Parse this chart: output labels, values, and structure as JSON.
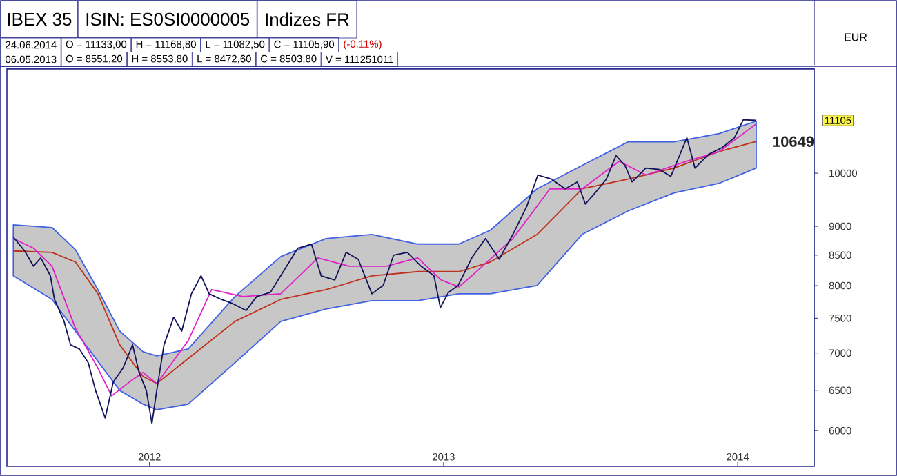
{
  "chart_data": {
    "type": "line",
    "title": "IBEX 35",
    "subtitle": "ISIN: ES0SI0000005",
    "ylabel": "EUR",
    "log": "y",
    "ylim": [
      5590,
      12300
    ],
    "yticks": [
      6000,
      6500,
      7000,
      7500,
      8000,
      8500,
      9000,
      10000
    ],
    "xlim": [
      "2011-12-07",
      "2014-09-04"
    ],
    "xticks": [
      {
        "value": "2012-06-01",
        "label": "2012"
      },
      {
        "value": "2013-06-01",
        "label": "2013"
      },
      {
        "value": "2014-06-01",
        "label": "2014"
      }
    ],
    "annotations": [
      "Indizes FR",
      "24.06.2014",
      "O = 11133,00",
      "H = 11168,80",
      "L = 11082,50",
      "C = 11105,90",
      "(-0.11%)",
      "06.05.2013",
      "O = 8551,20",
      "H = 8553,80",
      "L = 8472,60",
      "C = 8503,80",
      "V = 111251011",
      "11105"
    ],
    "series": [
      {
        "color": "#c0301c",
        "x": [
          "2011-12-15",
          "2012-02-01",
          "2012-03-01",
          "2012-03-29",
          "2012-04-25",
          "2012-05-24",
          "2012-06-10",
          "2012-07-19",
          "2012-09-15",
          "2012-11-11",
          "2013-01-06",
          "2013-03-04",
          "2013-04-30",
          "2013-06-20",
          "2013-07-29",
          "2013-09-25",
          "2013-11-20",
          "2014-01-16",
          "2014-03-14",
          "2014-05-09",
          "2014-06-24"
        ],
        "values": [
          8571,
          8547,
          8385,
          7873,
          7114,
          6680,
          6588,
          6922,
          7453,
          7787,
          7937,
          8158,
          8226,
          8226,
          8385,
          8857,
          9695,
          9883,
          10102,
          10439,
          10649
        ],
        "value_labels": [
          null,
          null,
          null,
          null,
          null,
          null,
          null,
          null,
          null,
          null,
          null,
          null,
          null,
          null,
          null,
          null,
          null,
          null,
          null,
          null,
          "10649"
        ],
        "upper": [
          9026,
          8979,
          8594,
          7937,
          7311,
          7017,
          6959,
          7056,
          7830,
          8477,
          8784,
          8857,
          8689,
          8689,
          8930,
          9695,
          10157,
          10642,
          10642,
          10818,
          11088
        ],
        "lower": [
          8158,
          7787,
          7311,
          6884,
          6499,
          6323,
          6254,
          6323,
          6865,
          7453,
          7639,
          7766,
          7766,
          7873,
          7873,
          8003,
          8857,
          9279,
          9616,
          9802,
          10102
        ]
      },
      {
        "color": "#e020c8",
        "x": [
          "2011-12-15",
          "2012-01-09",
          "2012-02-01",
          "2012-03-01",
          "2012-03-29",
          "2012-04-15",
          "2012-05-07",
          "2012-05-24",
          "2012-06-10",
          "2012-07-19",
          "2012-08-17",
          "2012-09-25",
          "2012-11-11",
          "2012-12-27",
          "2013-02-04",
          "2013-03-22",
          "2013-04-30",
          "2013-05-29",
          "2013-06-20",
          "2013-07-06",
          "2013-08-26",
          "2013-10-11",
          "2013-11-20",
          "2014-01-05",
          "2014-02-07",
          "2014-03-30",
          "2014-05-09",
          "2014-06-24"
        ],
        "values": [
          8784,
          8618,
          8316,
          7353,
          6791,
          6428,
          6607,
          6735,
          6588,
          7173,
          7937,
          7830,
          7873,
          8454,
          8316,
          8316,
          8454,
          8091,
          7981,
          8158,
          8784,
          9695,
          9695,
          10241,
          9964,
          10241,
          10439,
          11028
        ]
      },
      {
        "color": "#12125a",
        "x": [
          "2011-12-15",
          "2011-12-29",
          "2012-01-09",
          "2012-01-18",
          "2012-01-30",
          "2012-02-04",
          "2012-02-16",
          "2012-02-24",
          "2012-03-06",
          "2012-03-17",
          "2012-03-26",
          "2012-04-07",
          "2012-04-17",
          "2012-04-29",
          "2012-05-11",
          "2012-05-19",
          "2012-05-28",
          "2012-06-04",
          "2012-06-10",
          "2012-06-19",
          "2012-07-01",
          "2012-07-11",
          "2012-07-23",
          "2012-08-04",
          "2012-08-14",
          "2012-08-29",
          "2012-09-12",
          "2012-09-29",
          "2012-10-12",
          "2012-10-29",
          "2012-11-14",
          "2012-12-02",
          "2012-12-19",
          "2012-12-31",
          "2013-01-17",
          "2013-01-31",
          "2013-02-15",
          "2013-03-04",
          "2013-03-18",
          "2013-03-31",
          "2013-04-17",
          "2013-05-04",
          "2013-05-20",
          "2013-05-28",
          "2013-06-07",
          "2013-06-19",
          "2013-07-06",
          "2013-07-23",
          "2013-08-09",
          "2013-08-26",
          "2013-09-12",
          "2013-09-26",
          "2013-10-13",
          "2013-10-30",
          "2013-11-14",
          "2013-11-24",
          "2013-12-06",
          "2013-12-20",
          "2014-01-01",
          "2014-01-12",
          "2014-01-21",
          "2014-02-07",
          "2014-02-24",
          "2014-03-10",
          "2014-03-30",
          "2014-04-09",
          "2014-04-26",
          "2014-05-13",
          "2014-05-28",
          "2014-06-08",
          "2014-06-24"
        ],
        "values": [
          8809,
          8571,
          8316,
          8454,
          8158,
          7787,
          7453,
          7114,
          7056,
          6865,
          6499,
          6152,
          6607,
          6791,
          7114,
          6735,
          6499,
          6085,
          6499,
          7114,
          7514,
          7311,
          7873,
          8158,
          7873,
          7787,
          7723,
          7618,
          7830,
          7895,
          8226,
          8618,
          8689,
          8158,
          8091,
          8547,
          8431,
          7873,
          8003,
          8500,
          8547,
          8316,
          8158,
          7660,
          7895,
          8003,
          8454,
          8784,
          8431,
          8857,
          9356,
          9964,
          9883,
          9695,
          9829,
          9407,
          9616,
          9883,
          10354,
          10157,
          9829,
          10102,
          10074,
          9937,
          10729,
          10102,
          10383,
          10525,
          10729,
          11118,
          11105.9
        ]
      }
    ]
  }
}
